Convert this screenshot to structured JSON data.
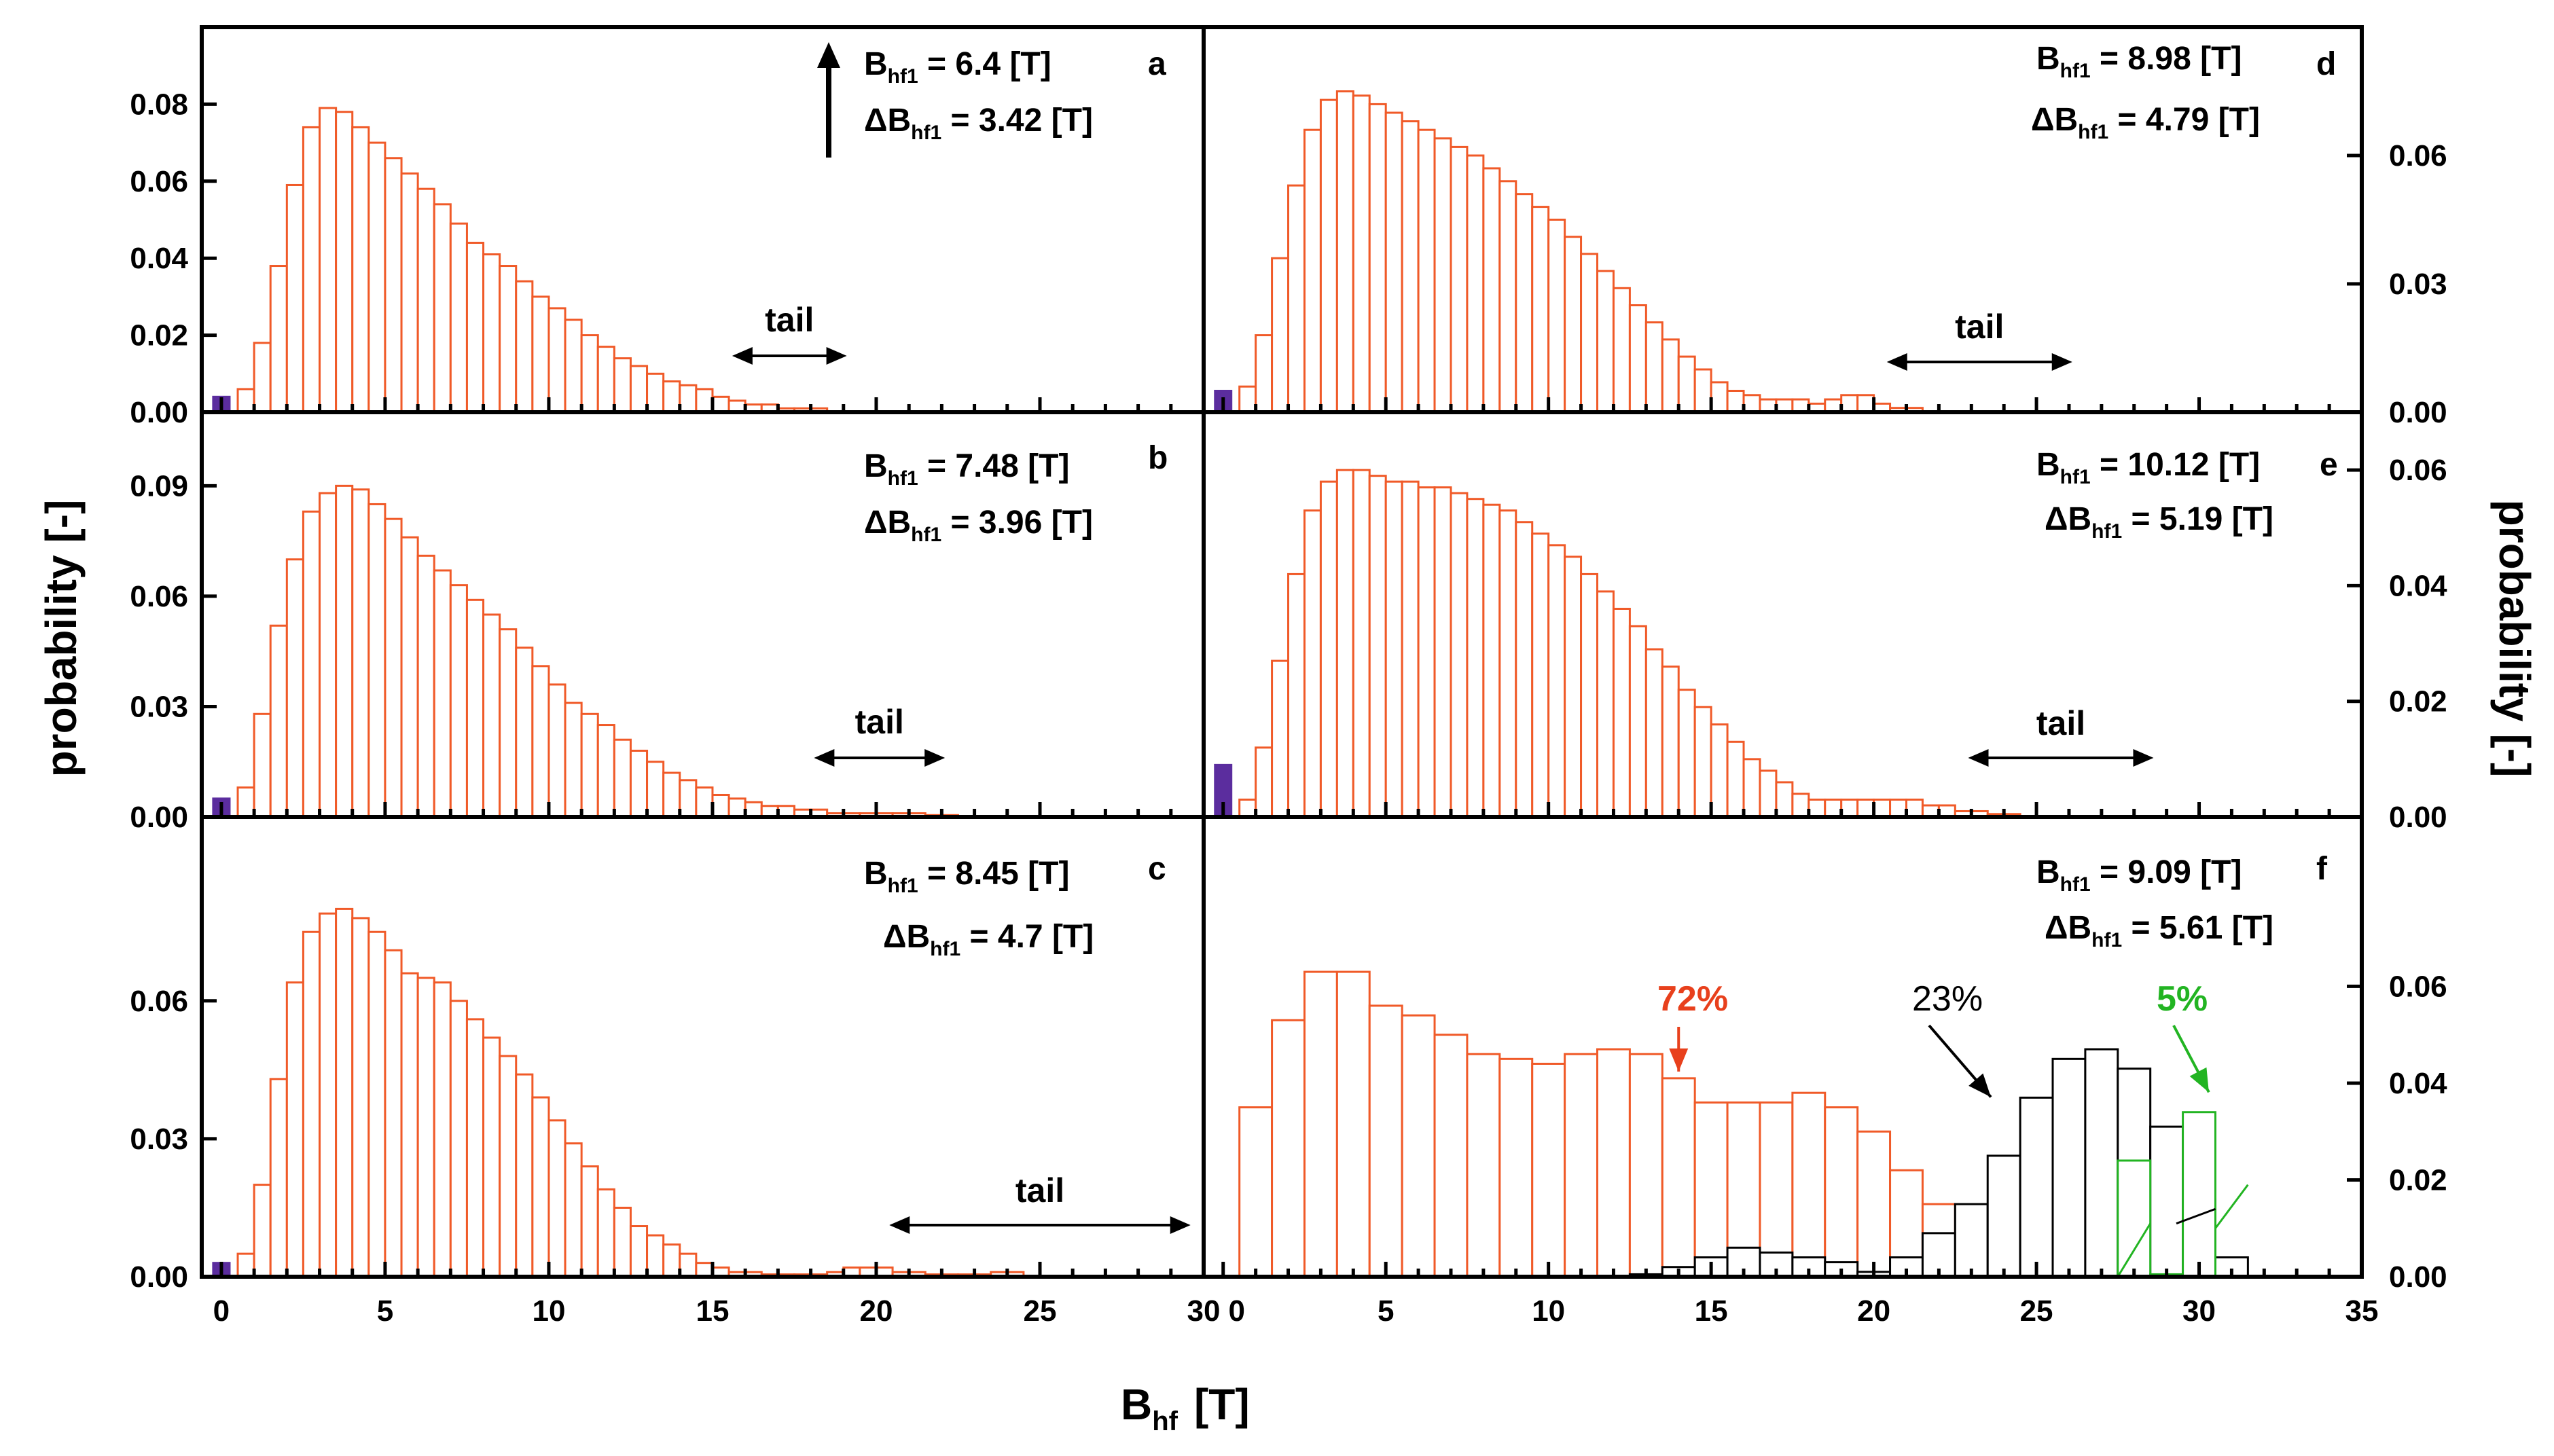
{
  "figure": {
    "ylabel_left": "probability [-]",
    "ylabel_right": "probability [-]",
    "xlabel_main": "B",
    "xlabel_sub": "hf",
    "xlabel_unit": "[T]",
    "tail_label": "tail"
  },
  "chart_data": [
    {
      "id": "a",
      "type": "bar",
      "label": "a",
      "bin_width": 0.5,
      "ann_line1": {
        "main": "B",
        "sub": "hf1",
        "rest": " = 6.4 [T]"
      },
      "ann_line2": {
        "main": "ΔB",
        "sub": "hf1",
        "rest": " = 3.42 [T]"
      },
      "xlim": [
        -0.6,
        30
      ],
      "ylim": [
        0,
        0.1
      ],
      "yticks": [
        0,
        0.02,
        0.04,
        0.06,
        0.08
      ],
      "ytick_labels": [
        "0.00",
        "0.02",
        "0.04",
        "0.06",
        "0.08"
      ],
      "tail_range": [
        15.6,
        19.1
      ],
      "zero_bar": 0.004,
      "series": [
        {
          "name": "distribution",
          "color": "#f05a28",
          "start": 0.5,
          "values": [
            0.006,
            0.018,
            0.038,
            0.059,
            0.074,
            0.079,
            0.078,
            0.074,
            0.07,
            0.066,
            0.062,
            0.058,
            0.054,
            0.049,
            0.044,
            0.041,
            0.038,
            0.034,
            0.03,
            0.027,
            0.024,
            0.02,
            0.017,
            0.014,
            0.012,
            0.01,
            0.008,
            0.007,
            0.006,
            0.004,
            0.003,
            0.002,
            0.002,
            0.001,
            0.001,
            0.001
          ]
        }
      ]
    },
    {
      "id": "b",
      "type": "bar",
      "label": "b",
      "bin_width": 0.5,
      "ann_line1": {
        "main": "B",
        "sub": "hf1",
        "rest": " = 7.48 [T]"
      },
      "ann_line2": {
        "main": "ΔB",
        "sub": "hf1",
        "rest": " = 3.96 [T]"
      },
      "xlim": [
        -0.6,
        30
      ],
      "ylim": [
        0,
        0.11
      ],
      "yticks": [
        0,
        0.03,
        0.06,
        0.09
      ],
      "ytick_labels": [
        "0.00",
        "0.03",
        "0.06",
        "0.09"
      ],
      "tail_range": [
        18.1,
        22.1
      ],
      "zero_bar": 0.005,
      "series": [
        {
          "name": "distribution",
          "color": "#f05a28",
          "start": 0.5,
          "values": [
            0.008,
            0.028,
            0.052,
            0.07,
            0.083,
            0.088,
            0.09,
            0.089,
            0.085,
            0.081,
            0.076,
            0.071,
            0.067,
            0.063,
            0.059,
            0.055,
            0.051,
            0.046,
            0.041,
            0.036,
            0.031,
            0.028,
            0.025,
            0.021,
            0.018,
            0.015,
            0.012,
            0.01,
            0.008,
            0.006,
            0.005,
            0.004,
            0.003,
            0.003,
            0.002,
            0.002,
            0.001,
            0.001,
            0.001,
            0.001,
            0.001,
            0.001,
            0.0005,
            0.0005
          ]
        }
      ]
    },
    {
      "id": "c",
      "type": "bar",
      "label": "c",
      "bin_width": 0.5,
      "ann_line1": {
        "main": "B",
        "sub": "hf1",
        "rest": " = 8.45 [T]"
      },
      "ann_line2": {
        "main": "ΔB",
        "sub": "hf1",
        "rest": " = 4.7 [T]"
      },
      "xlim": [
        -0.6,
        30
      ],
      "ylim": [
        0,
        0.1
      ],
      "yticks": [
        0,
        0.03,
        0.06
      ],
      "ytick_labels": [
        "0.00",
        "0.03",
        "0.06"
      ],
      "tail_range": [
        20.4,
        29.6
      ],
      "zero_bar": 0.003,
      "series": [
        {
          "name": "distribution",
          "color": "#f05a28",
          "start": 0.5,
          "values": [
            0.005,
            0.02,
            0.043,
            0.064,
            0.075,
            0.079,
            0.08,
            0.078,
            0.075,
            0.071,
            0.066,
            0.065,
            0.064,
            0.06,
            0.056,
            0.052,
            0.048,
            0.044,
            0.039,
            0.034,
            0.029,
            0.024,
            0.019,
            0.015,
            0.011,
            0.009,
            0.007,
            0.005,
            0.003,
            0.002,
            0.001,
            0.001,
            0.0005,
            0.0005,
            0.0005,
            0.0005,
            0.001,
            0.002,
            0.002,
            0.002,
            0.001,
            0.001,
            0.0005,
            0.0005,
            0.0005,
            0.0005,
            0.001,
            0.001
          ]
        }
      ]
    },
    {
      "id": "d",
      "type": "bar",
      "label": "d",
      "bin_width": 0.5,
      "ann_line1": {
        "main": "B",
        "sub": "hf1",
        "rest": " = 8.98 [T]"
      },
      "ann_line2": {
        "main": "ΔB",
        "sub": "hf1",
        "rest": " = 4.79 [T]"
      },
      "xlim": [
        -0.6,
        35
      ],
      "ylim": [
        0,
        0.09
      ],
      "yticks": [
        0,
        0.03,
        0.06
      ],
      "ytick_labels": [
        "0.00",
        "0.03",
        "0.06"
      ],
      "tail_range": [
        20.4,
        26.1
      ],
      "zero_bar": 0.005,
      "series": [
        {
          "name": "distribution",
          "color": "#f05a28",
          "start": 0.5,
          "values": [
            0.006,
            0.018,
            0.036,
            0.053,
            0.066,
            0.073,
            0.075,
            0.074,
            0.072,
            0.07,
            0.068,
            0.066,
            0.064,
            0.062,
            0.06,
            0.057,
            0.054,
            0.051,
            0.048,
            0.045,
            0.041,
            0.037,
            0.033,
            0.029,
            0.025,
            0.021,
            0.017,
            0.013,
            0.01,
            0.007,
            0.005,
            0.004,
            0.003,
            0.003,
            0.003,
            0.002,
            0.003,
            0.004,
            0.004,
            0.002,
            0.001,
            0.001
          ]
        }
      ]
    },
    {
      "id": "e",
      "type": "bar",
      "label": "e",
      "bin_width": 0.5,
      "ann_line1": {
        "main": "B",
        "sub": "hf1",
        "rest": " = 10.12 [T]"
      },
      "ann_line2": {
        "main": "ΔB",
        "sub": "hf1",
        "rest": " = 5.19 [T]"
      },
      "xlim": [
        -0.6,
        35
      ],
      "ylim": [
        0,
        0.07
      ],
      "yticks": [
        0,
        0.02,
        0.04,
        0.06
      ],
      "ytick_labels": [
        "0.00",
        "0.02",
        "0.04",
        "0.06"
      ],
      "tail_range": [
        22.9,
        28.6
      ],
      "zero_bar": 0.009,
      "series": [
        {
          "name": "distribution",
          "color": "#f05a28",
          "start": 0.5,
          "values": [
            0.003,
            0.012,
            0.027,
            0.042,
            0.053,
            0.058,
            0.06,
            0.06,
            0.059,
            0.058,
            0.058,
            0.057,
            0.057,
            0.056,
            0.055,
            0.054,
            0.053,
            0.051,
            0.049,
            0.047,
            0.045,
            0.042,
            0.039,
            0.036,
            0.033,
            0.029,
            0.026,
            0.022,
            0.019,
            0.016,
            0.013,
            0.01,
            0.008,
            0.006,
            0.004,
            0.003,
            0.003,
            0.003,
            0.003,
            0.003,
            0.003,
            0.003,
            0.002,
            0.002,
            0.001,
            0.001,
            0.0005,
            0.0005
          ]
        }
      ]
    },
    {
      "id": "f",
      "type": "bar",
      "label": "f",
      "bin_width": 1.0,
      "ann_line1": {
        "main": "B",
        "sub": "hf1",
        "rest": " = 9.09 [T]"
      },
      "ann_line2": {
        "main": "ΔB",
        "sub": "hf1",
        "rest": " = 5.61 [T]"
      },
      "xlim": [
        -0.6,
        35
      ],
      "ylim": [
        0,
        0.095
      ],
      "yticks": [
        0,
        0.02,
        0.04,
        0.06
      ],
      "ytick_labels": [
        "0.00",
        "0.02",
        "0.04",
        "0.06"
      ],
      "xticks": [
        0,
        5,
        10,
        15,
        20,
        25,
        30,
        35
      ],
      "xtick_labels": [
        "0",
        "5",
        "10",
        "15",
        "20",
        "25",
        "30",
        "35"
      ],
      "component_labels": [
        {
          "text": "72%",
          "color": "#e8401c"
        },
        {
          "text": "23%",
          "color": "#000000"
        },
        {
          "text": "5%",
          "color": "#22b422"
        }
      ],
      "series": [
        {
          "name": "72%",
          "color": "#f05a28",
          "start": 0.5,
          "values": [
            0.035,
            0.053,
            0.063,
            0.063,
            0.056,
            0.054,
            0.05,
            0.046,
            0.045,
            0.044,
            0.046,
            0.047,
            0.046,
            0.041,
            0.036,
            0.036,
            0.036,
            0.038,
            0.035,
            0.03,
            0.022,
            0.015,
            0.008,
            0.004,
            0.002
          ]
        },
        {
          "name": "23%",
          "color": "#000000",
          "start": 12.5,
          "values": [
            0.0005,
            0.002,
            0.004,
            0.006,
            0.005,
            0.004,
            0.003,
            0.001,
            0.004,
            0.009,
            0.015,
            0.025,
            0.037,
            0.045,
            0.047,
            0.043,
            0.031,
            0.016,
            0.004
          ]
        },
        {
          "name": "5%",
          "color": "#22b422",
          "start": 27.5,
          "values": [
            0.024,
            0.0005,
            0.034
          ]
        }
      ]
    }
  ]
}
